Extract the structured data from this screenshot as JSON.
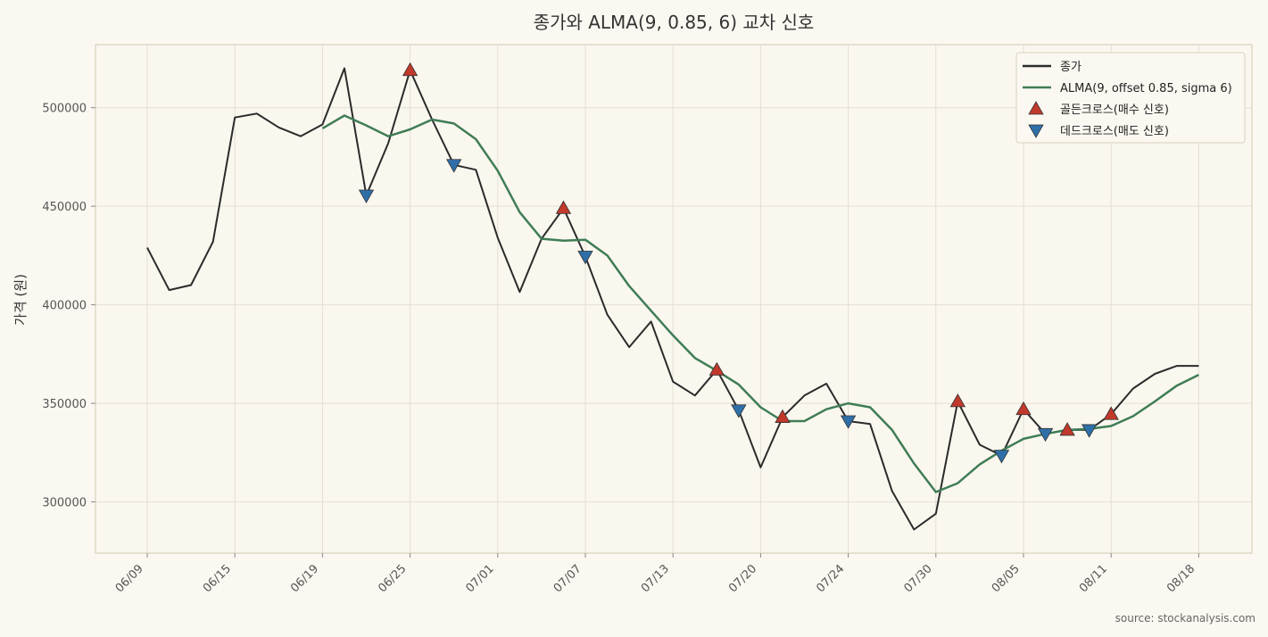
{
  "chart_data": {
    "type": "line",
    "title": "종가와 ALMA(9, 0.85, 6) 교차 신호",
    "xlabel": "",
    "ylabel": "가격 (원)",
    "source": "source: stockanalysis.com",
    "x_tick_labels": [
      "06/09",
      "06/15",
      "06/19",
      "06/25",
      "07/01",
      "07/07",
      "07/13",
      "07/20",
      "07/24",
      "07/30",
      "08/05",
      "08/11",
      "08/18"
    ],
    "y_ticks": [
      300000,
      350000,
      400000,
      450000,
      500000
    ],
    "ylim": [
      274000,
      532000
    ],
    "grid": true,
    "legend_position": "top-right",
    "colors": {
      "close": "#2b2b2b",
      "alma": "#3f7d55",
      "golden": "#c0392b",
      "dead": "#2f6fa8",
      "grid": "#e4dfd3",
      "frame": "#d9d2bd"
    },
    "series": [
      {
        "name": "종가",
        "values": [
          429000,
          407500,
          410000,
          432000,
          495000,
          497000,
          490000,
          485500,
          491500,
          520000,
          455500,
          482000,
          519000,
          494000,
          471000,
          468500,
          434000,
          406500,
          433500,
          449000,
          424500,
          395000,
          378500,
          391500,
          361000,
          354000,
          367000,
          346500,
          317500,
          343000,
          354000,
          360000,
          341000,
          339500,
          305500,
          286000,
          294000,
          351000,
          329000,
          323500,
          347000,
          334500,
          336500,
          336500,
          344500,
          357500,
          365000,
          369000,
          369000
        ],
        "offset": 0
      },
      {
        "name": "ALMA(9, offset 0.85, sigma 6)",
        "values": [
          489500,
          496000,
          491000,
          485500,
          489000,
          494000,
          492000,
          484000,
          468000,
          447000,
          433500,
          432500,
          433000,
          425000,
          409500,
          397000,
          384500,
          373000,
          366500,
          359500,
          348000,
          341000,
          341000,
          347000,
          350000,
          348000,
          336500,
          319500,
          305000,
          309500,
          319000,
          326000,
          332000,
          334500,
          336500,
          337000,
          338500,
          343500,
          351000,
          359000,
          364500
        ],
        "offset": 8
      }
    ],
    "signals": [
      {
        "name": "골든크로스(매수 신호)",
        "kind": "golden",
        "points": [
          {
            "i": 12,
            "v": 519000
          },
          {
            "i": 19,
            "v": 449000
          },
          {
            "i": 26,
            "v": 367000
          },
          {
            "i": 29,
            "v": 343000
          },
          {
            "i": 37,
            "v": 351000
          },
          {
            "i": 40,
            "v": 347000
          },
          {
            "i": 42,
            "v": 336500
          },
          {
            "i": 44,
            "v": 344500
          }
        ]
      },
      {
        "name": "데드크로스(매도 신호)",
        "kind": "dead",
        "points": [
          {
            "i": 10,
            "v": 455500
          },
          {
            "i": 14,
            "v": 471000
          },
          {
            "i": 20,
            "v": 424500
          },
          {
            "i": 27,
            "v": 346500
          },
          {
            "i": 32,
            "v": 341000
          },
          {
            "i": 39,
            "v": 323500
          },
          {
            "i": 41,
            "v": 334500
          },
          {
            "i": 43,
            "v": 336500
          }
        ]
      }
    ]
  }
}
